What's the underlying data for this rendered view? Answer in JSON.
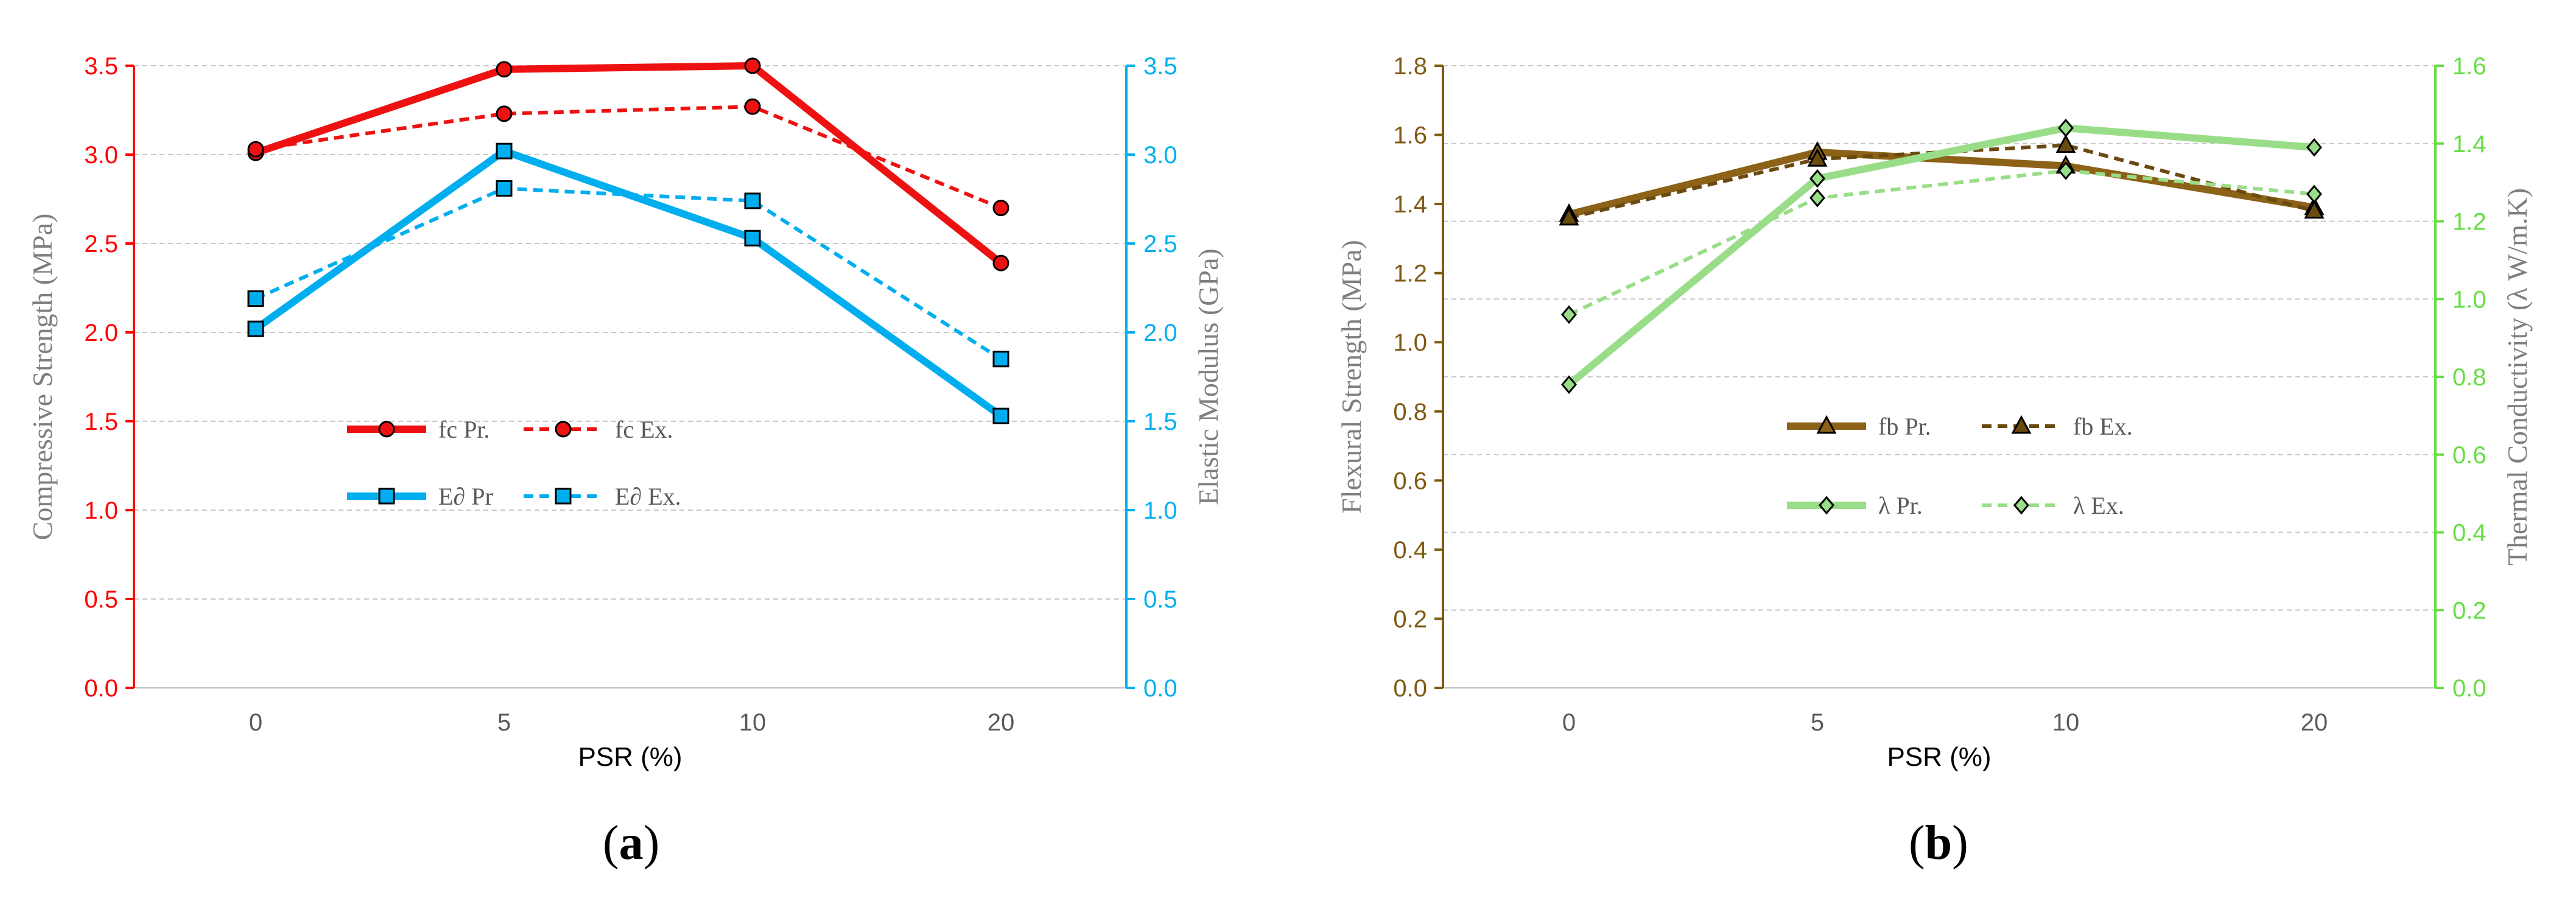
{
  "chart_data": [
    {
      "type": "line",
      "panel_label": "a",
      "categories": [
        "0",
        "5",
        "10",
        "20"
      ],
      "xlabel": "PSR (%)",
      "ylabel": "Compressive Strength (MPa)",
      "ylabel_right": "Elastic Modulus (GPa)",
      "ylim": [
        0,
        3.5
      ],
      "ylim_right": [
        0,
        3.5
      ],
      "yticks": [
        "0.0",
        "0.5",
        "1.0",
        "1.5",
        "2.0",
        "2.5",
        "3.0",
        "3.5"
      ],
      "yticks_right": [
        "0.0",
        "0.5",
        "1.0",
        "1.5",
        "2.0",
        "2.5",
        "3.0",
        "3.5"
      ],
      "grid": true,
      "legend_position": "center",
      "colors": {
        "left_axis": "#ff0000",
        "right_axis": "#00b0f0"
      },
      "series": [
        {
          "name": "fc Pr.",
          "axis": "left",
          "values": [
            3.01,
            3.48,
            3.5,
            2.39
          ],
          "color": "#ee1111",
          "dashed": false,
          "marker": "circle"
        },
        {
          "name": "fc Ex.",
          "axis": "left",
          "values": [
            3.03,
            3.23,
            3.27,
            2.7
          ],
          "color": "#ee1111",
          "dashed": true,
          "marker": "circle"
        },
        {
          "name": "E∂ Pr",
          "axis": "right",
          "values": [
            2.02,
            3.02,
            2.53,
            1.53
          ],
          "color": "#00aeef",
          "dashed": false,
          "marker": "square"
        },
        {
          "name": "E∂ Ex.",
          "axis": "right",
          "values": [
            2.19,
            2.81,
            2.74,
            1.85
          ],
          "color": "#00aeef",
          "dashed": true,
          "marker": "square"
        }
      ]
    },
    {
      "type": "line",
      "panel_label": "b",
      "categories": [
        "0",
        "5",
        "10",
        "20"
      ],
      "xlabel": "PSR (%)",
      "ylabel": "Flexural Strength (MPa)",
      "ylabel_right": "Thermal Conductivity (λ W/m.K)",
      "ylim": [
        0,
        1.8
      ],
      "ylim_right": [
        0,
        1.6
      ],
      "yticks": [
        "0.0",
        "0.2",
        "0.4",
        "0.6",
        "0.8",
        "1.0",
        "1.2",
        "1.4",
        "1.6",
        "1.8"
      ],
      "yticks_right": [
        "0.0",
        "0.2",
        "0.4",
        "0.6",
        "0.8",
        "1.0",
        "1.2",
        "1.4",
        "1.6"
      ],
      "grid": true,
      "legend_position": "center",
      "colors": {
        "left_axis": "#7f5a12",
        "right_axis": "#66dd44"
      },
      "series": [
        {
          "name": "fb Pr.",
          "axis": "left",
          "values": [
            1.37,
            1.55,
            1.51,
            1.39
          ],
          "color": "#8b6218",
          "dashed": false,
          "marker": "triangle"
        },
        {
          "name": "fb Ex.",
          "axis": "left",
          "values": [
            1.36,
            1.53,
            1.57,
            1.38
          ],
          "color": "#6b4a10",
          "dashed": true,
          "marker": "triangle"
        },
        {
          "name": "λ Pr.",
          "axis": "right",
          "values": [
            0.78,
            1.31,
            1.44,
            1.39
          ],
          "color": "#99dd88",
          "dashed": false,
          "marker": "diamond"
        },
        {
          "name": "λ  Ex.",
          "axis": "right",
          "values": [
            0.96,
            1.26,
            1.33,
            1.27
          ],
          "color": "#99dd88",
          "dashed": true,
          "marker": "diamond"
        }
      ]
    }
  ]
}
